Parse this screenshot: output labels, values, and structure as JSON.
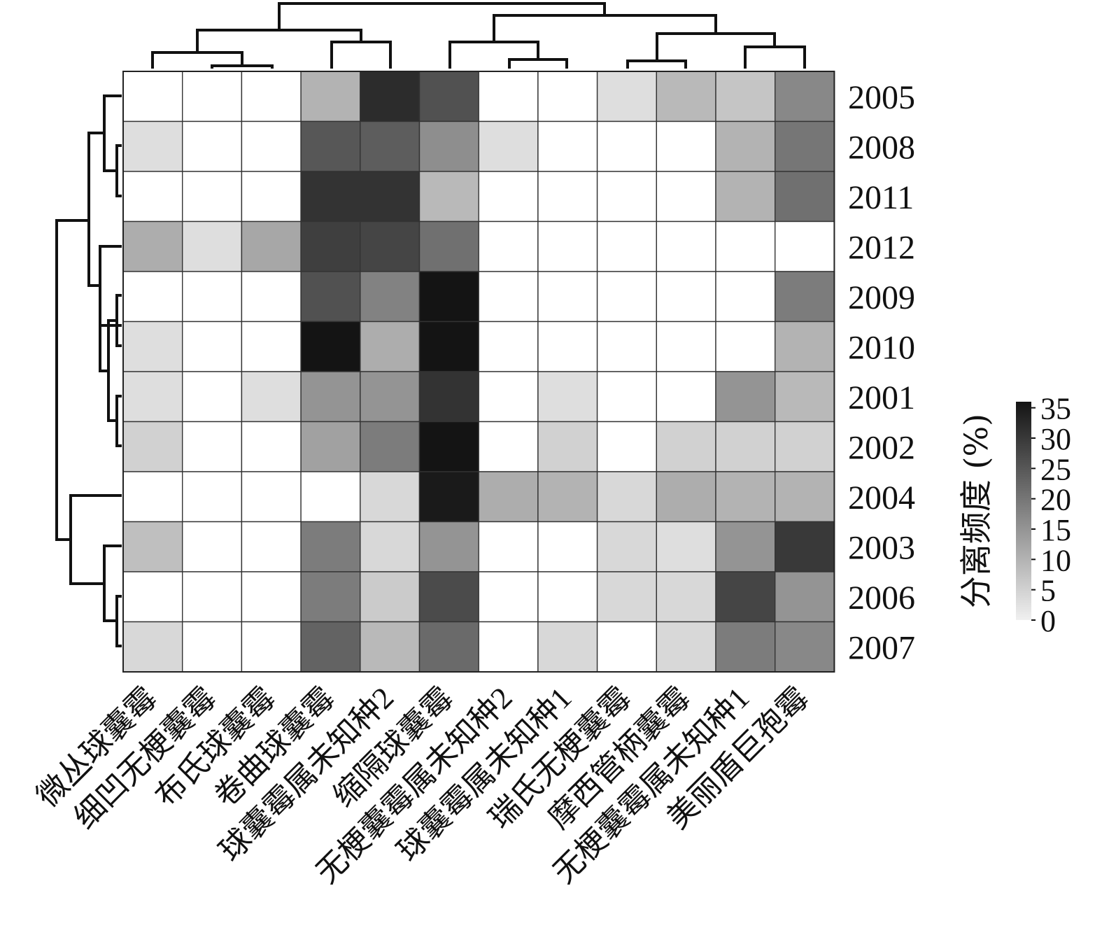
{
  "chart_data": {
    "type": "heatmap",
    "title": "",
    "xlabel": "",
    "ylabel": "",
    "rows": [
      "2005",
      "2008",
      "2011",
      "2012",
      "2009",
      "2010",
      "2001",
      "2002",
      "2004",
      "2003",
      "2006",
      "2007"
    ],
    "columns": [
      "微丛球囊霉",
      "细凹无梗囊霉",
      "布氏球囊霉",
      "卷曲球囊霉",
      "球囊霉属未知种2",
      "缩隔球囊霉",
      "无梗囊霉属未知种2",
      "球囊霉属未知种1",
      "瑞氏无梗囊霉",
      "摩西管柄囊霉",
      "无梗囊霉属未知种1",
      "美丽盾巨孢霉"
    ],
    "values": [
      [
        0,
        0,
        0,
        10,
        32,
        26,
        0,
        0,
        3,
        9,
        7,
        17
      ],
      [
        3,
        0,
        0,
        25,
        24,
        16,
        3,
        0,
        0,
        0,
        10,
        20
      ],
      [
        0,
        0,
        0,
        31,
        31,
        9,
        0,
        0,
        0,
        0,
        10,
        21
      ],
      [
        11,
        3,
        12,
        29,
        28,
        21,
        0,
        0,
        0,
        0,
        0,
        0
      ],
      [
        0,
        0,
        0,
        26,
        18,
        36,
        0,
        0,
        0,
        0,
        0,
        19
      ],
      [
        3,
        0,
        0,
        36,
        11,
        36,
        0,
        0,
        0,
        0,
        0,
        10
      ],
      [
        3,
        0,
        3,
        15,
        15,
        31,
        0,
        3,
        0,
        0,
        15,
        9
      ],
      [
        5,
        0,
        0,
        13,
        19,
        36,
        0,
        5,
        0,
        5,
        5,
        5
      ],
      [
        0,
        0,
        0,
        0,
        4,
        35,
        11,
        10,
        4,
        11,
        10,
        10
      ],
      [
        8,
        0,
        0,
        19,
        4,
        15,
        0,
        0,
        4,
        3,
        15,
        30
      ],
      [
        0,
        0,
        0,
        19,
        6,
        27,
        0,
        0,
        4,
        4,
        28,
        15
      ],
      [
        4,
        0,
        0,
        23,
        9,
        22,
        0,
        4,
        0,
        4,
        19,
        17
      ]
    ],
    "colorbar": {
      "title": "分离频度 (%)",
      "min": 0,
      "max": 36,
      "ticks": [
        35,
        30,
        25,
        20,
        15,
        10,
        5,
        0
      ],
      "colors": [
        "#f0f0f0",
        "#141414"
      ]
    },
    "row_dendrogram": true,
    "column_dendrogram": true,
    "grid": true,
    "legend": "right"
  }
}
